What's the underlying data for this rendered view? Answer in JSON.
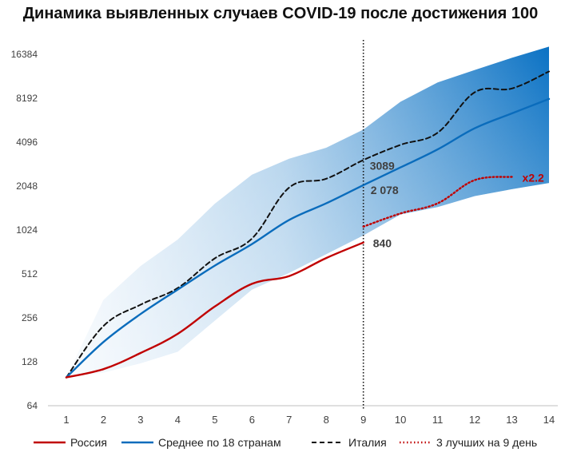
{
  "chart_data": {
    "type": "line",
    "title": "Динамика выявленных случаев COVID-19 после достижения 100",
    "y_scale": "log2",
    "ylim": [
      64,
      16384
    ],
    "yticks": [
      "64",
      "128",
      "256",
      "512",
      "1024",
      "2048",
      "4096",
      "8192",
      "16384"
    ],
    "x": [
      1,
      2,
      3,
      4,
      5,
      6,
      7,
      8,
      9,
      10,
      11,
      12,
      13,
      14
    ],
    "xticks": [
      "1",
      "2",
      "3",
      "4",
      "5",
      "6",
      "7",
      "8",
      "9",
      "10",
      "11",
      "12",
      "13",
      "14"
    ],
    "vertical_marker_x": 9,
    "band": {
      "x": [
        1,
        2,
        3,
        4,
        5,
        6,
        7,
        8,
        9,
        10,
        11,
        12,
        13,
        14
      ],
      "upper": [
        100,
        340,
        580,
        880,
        1550,
        2450,
        3150,
        3750,
        5000,
        7750,
        10500,
        12800,
        15500,
        18500
      ],
      "lower": [
        100,
        108,
        125,
        150,
        245,
        400,
        520,
        700,
        940,
        1310,
        1470,
        1750,
        1950,
        2150
      ]
    },
    "series": [
      {
        "name": "Россия",
        "style": "solid",
        "color": "#C00000",
        "x": [
          1,
          2,
          3,
          4,
          5,
          6,
          7,
          8,
          9
        ],
        "values": [
          100,
          114,
          147,
          199,
          306,
          438,
          495,
          658,
          840
        ],
        "end_label": "840"
      },
      {
        "name": "Среднее по 18 странам",
        "style": "solid",
        "color": "#0A6CBC",
        "x": [
          1,
          2,
          3,
          4,
          5,
          6,
          7,
          8,
          9,
          10,
          11,
          12,
          13,
          14
        ],
        "values": [
          100,
          175,
          272,
          400,
          584,
          820,
          1200,
          1560,
          2078,
          2750,
          3650,
          5100,
          6450,
          8100
        ],
        "end_label": "2 078"
      },
      {
        "name": "Италия",
        "style": "dashed",
        "color": "#111111",
        "x": [
          1,
          2,
          3,
          4,
          5,
          6,
          7,
          8,
          9,
          10,
          11,
          12,
          13,
          14
        ],
        "values": [
          100,
          225,
          315,
          410,
          655,
          895,
          2000,
          2300,
          3089,
          3925,
          4750,
          9000,
          9550,
          12500
        ],
        "end_label": "3089"
      },
      {
        "name": "3 лучших на 9 день",
        "style": "dotted",
        "color": "#C00000",
        "x": [
          9,
          10,
          11,
          12,
          13
        ],
        "values": [
          1080,
          1330,
          1560,
          2250,
          2370
        ],
        "end_label": "x2.2"
      }
    ]
  }
}
